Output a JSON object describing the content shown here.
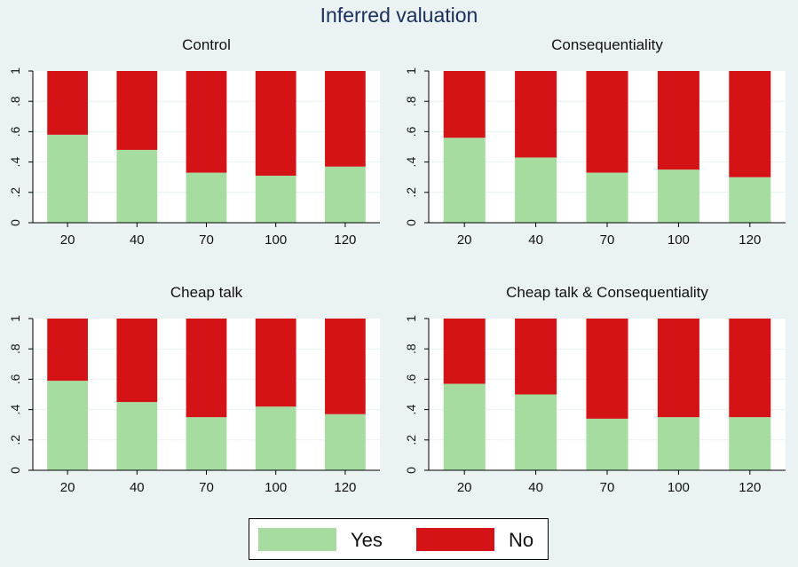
{
  "title": "Inferred valuation",
  "colors": {
    "yes": "#a6dca0",
    "no": "#d41317",
    "plot_bg": "#ffffff",
    "page_bg": "#eaf2f3",
    "grid": "#eaf2f3"
  },
  "legend": {
    "items": [
      {
        "label": "Yes",
        "color": "#a6dca0"
      },
      {
        "label": "No",
        "color": "#d41317"
      }
    ]
  },
  "chart_data": [
    {
      "type": "bar",
      "stacked": true,
      "title": "Control",
      "categories": [
        "20",
        "40",
        "70",
        "100",
        "120"
      ],
      "series": [
        {
          "name": "Yes",
          "values": [
            0.58,
            0.48,
            0.33,
            0.31,
            0.37
          ]
        },
        {
          "name": "No",
          "values": [
            0.42,
            0.52,
            0.67,
            0.69,
            0.63
          ]
        }
      ],
      "ylim": [
        0,
        1
      ],
      "yticks": [
        "0",
        ".2",
        ".4",
        ".6",
        ".8",
        "1"
      ],
      "grid": true
    },
    {
      "type": "bar",
      "stacked": true,
      "title": "Consequentiality",
      "categories": [
        "20",
        "40",
        "70",
        "100",
        "120"
      ],
      "series": [
        {
          "name": "Yes",
          "values": [
            0.56,
            0.43,
            0.33,
            0.35,
            0.3
          ]
        },
        {
          "name": "No",
          "values": [
            0.44,
            0.57,
            0.67,
            0.65,
            0.7
          ]
        }
      ],
      "ylim": [
        0,
        1
      ],
      "yticks": [
        "0",
        ".2",
        ".4",
        ".6",
        ".8",
        "1"
      ],
      "grid": true
    },
    {
      "type": "bar",
      "stacked": true,
      "title": "Cheap talk",
      "categories": [
        "20",
        "40",
        "70",
        "100",
        "120"
      ],
      "series": [
        {
          "name": "Yes",
          "values": [
            0.59,
            0.45,
            0.35,
            0.42,
            0.37
          ]
        },
        {
          "name": "No",
          "values": [
            0.41,
            0.55,
            0.65,
            0.58,
            0.63
          ]
        }
      ],
      "ylim": [
        0,
        1
      ],
      "yticks": [
        "0",
        ".2",
        ".4",
        ".6",
        ".8",
        "1"
      ],
      "grid": true
    },
    {
      "type": "bar",
      "stacked": true,
      "title": "Cheap talk & Consequentiality",
      "categories": [
        "20",
        "40",
        "70",
        "100",
        "120"
      ],
      "series": [
        {
          "name": "Yes",
          "values": [
            0.57,
            0.5,
            0.34,
            0.35,
            0.35
          ]
        },
        {
          "name": "No",
          "values": [
            0.43,
            0.5,
            0.66,
            0.65,
            0.65
          ]
        }
      ],
      "ylim": [
        0,
        1
      ],
      "yticks": [
        "0",
        ".2",
        ".4",
        ".6",
        ".8",
        "1"
      ],
      "grid": true
    }
  ]
}
